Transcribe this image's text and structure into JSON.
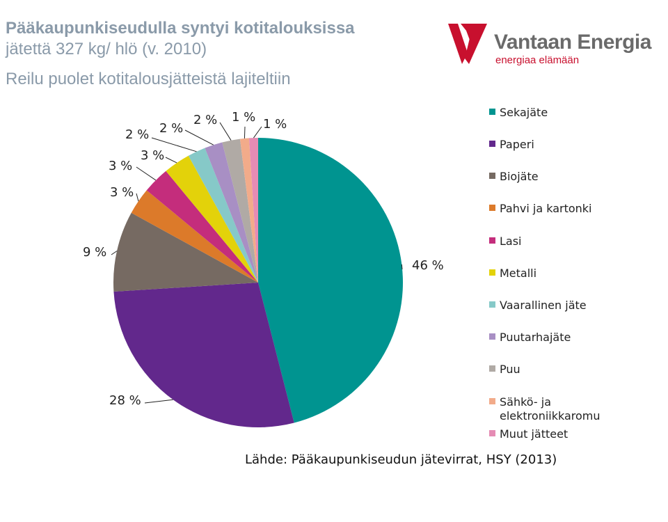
{
  "header": {
    "title_line1": "Pääkaupunkiseudulla syntyi kotitalouksissa",
    "title_line2": "jätettä 327 kg/ hlö (v. 2010)",
    "subtitle": "Reilu puolet kotitalousjätteistä lajiteltiin"
  },
  "logo": {
    "name": "Vantaan Energia",
    "slogan": "energiaa elämään",
    "color": "#c8102e"
  },
  "source": "Lähde: Pääkaupunkiseudun jätevirrat, HSY (2013)",
  "chart_data": {
    "type": "pie",
    "unit": "%",
    "start": "12 o'clock, clockwise",
    "legend_placement": "right",
    "slices": [
      {
        "name": "Sekajäte",
        "value": 46,
        "label": "46 %",
        "color": "#009490"
      },
      {
        "name": "Paperi",
        "value": 28,
        "label": "28 %",
        "color": "#62288c"
      },
      {
        "name": "Biojäte",
        "value": 9,
        "label": "9 %",
        "color": "#766a62"
      },
      {
        "name": "Pahvi ja kartonki",
        "value": 3,
        "label": "3 %",
        "color": "#dc7a2a"
      },
      {
        "name": "Lasi",
        "value": 3,
        "label": "3 %",
        "color": "#c42d7c"
      },
      {
        "name": "Metalli",
        "value": 3,
        "label": "3 %",
        "color": "#e3d20a"
      },
      {
        "name": "Vaarallinen jäte",
        "value": 2,
        "label": "2 %",
        "color": "#86c9c8"
      },
      {
        "name": "Puutarhajäte",
        "value": 2,
        "label": "2 %",
        "color": "#a88fc4"
      },
      {
        "name": "Puu",
        "value": 2,
        "label": "2 %",
        "color": "#b0aaa5"
      },
      {
        "name": "Sähkö- ja elektroniikkaromu",
        "value": 1,
        "label": "1 %",
        "color": "#f2ab8a"
      },
      {
        "name": "Muut jätteet",
        "value": 1,
        "label": "1 %",
        "color": "#e58cb4"
      }
    ]
  }
}
